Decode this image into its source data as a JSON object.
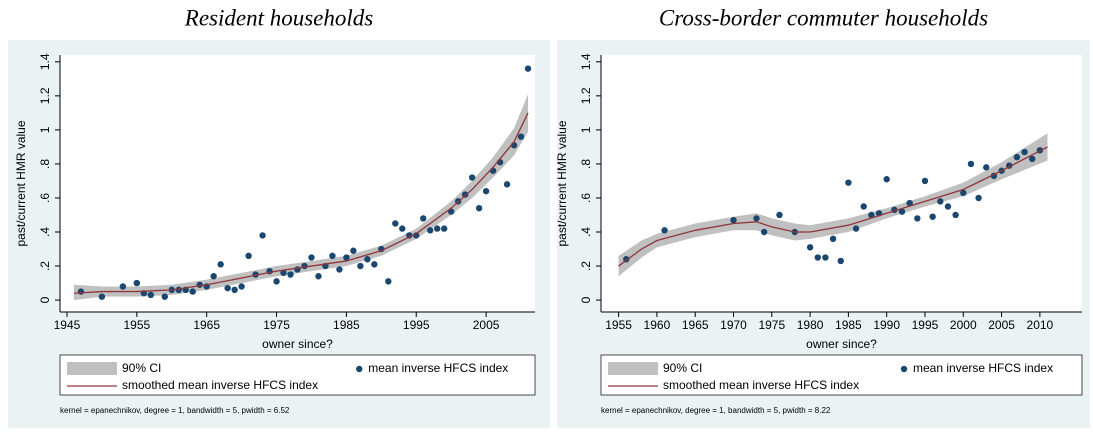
{
  "chart_data": [
    {
      "type": "scatter",
      "title": "Resident households",
      "xlabel": "owner since?",
      "ylabel": "past/current HMR value",
      "xlim": [
        1944,
        2012
      ],
      "ylim": [
        -0.07,
        1.44
      ],
      "xticks": [
        1945,
        1955,
        1965,
        1975,
        1985,
        1995,
        2005
      ],
      "yticks": [
        0,
        {
          "value": 0.2,
          "label": ".2"
        },
        {
          "value": 0.4,
          "label": ".4"
        },
        {
          "value": 0.6,
          "label": ".6"
        },
        {
          "value": 0.8,
          "label": ".8"
        },
        1,
        1.2,
        1.4
      ],
      "series": [
        {
          "name": "90% CI",
          "color": "#c0c0c0",
          "x": [
            1946,
            1950,
            1955,
            1960,
            1965,
            1970,
            1975,
            1980,
            1985,
            1990,
            1995,
            2000,
            2003,
            2006,
            2009,
            2011
          ],
          "lower": [
            0.0,
            0.02,
            0.02,
            0.03,
            0.06,
            0.1,
            0.14,
            0.17,
            0.2,
            0.26,
            0.36,
            0.5,
            0.6,
            0.72,
            0.85,
            0.99
          ],
          "upper": [
            0.09,
            0.08,
            0.08,
            0.09,
            0.12,
            0.16,
            0.2,
            0.23,
            0.26,
            0.32,
            0.42,
            0.58,
            0.7,
            0.84,
            1.01,
            1.21
          ]
        },
        {
          "name": "mean inverse HFCS index",
          "color": "#1a476f",
          "x": [
            1947,
            1950,
            1953,
            1955,
            1956,
            1957,
            1959,
            1960,
            1961,
            1962,
            1963,
            1964,
            1965,
            1966,
            1967,
            1968,
            1969,
            1970,
            1971,
            1972,
            1973,
            1974,
            1975,
            1976,
            1977,
            1978,
            1979,
            1980,
            1981,
            1982,
            1983,
            1984,
            1985,
            1986,
            1987,
            1988,
            1989,
            1990,
            1991,
            1992,
            1993,
            1994,
            1995,
            1996,
            1997,
            1998,
            1999,
            2000,
            2001,
            2002,
            2003,
            2004,
            2005,
            2006,
            2007,
            2008,
            2009,
            2010,
            2011
          ],
          "values": [
            0.05,
            0.02,
            0.08,
            0.1,
            0.04,
            0.03,
            0.02,
            0.06,
            0.06,
            0.06,
            0.05,
            0.09,
            0.08,
            0.14,
            0.21,
            0.07,
            0.06,
            0.08,
            0.26,
            0.15,
            0.38,
            0.17,
            0.11,
            0.16,
            0.15,
            0.18,
            0.2,
            0.25,
            0.14,
            0.2,
            0.26,
            0.18,
            0.25,
            0.29,
            0.2,
            0.24,
            0.21,
            0.3,
            0.11,
            0.45,
            0.42,
            0.38,
            0.38,
            0.48,
            0.41,
            0.42,
            0.42,
            0.52,
            0.58,
            0.62,
            0.72,
            0.54,
            0.64,
            0.76,
            0.81,
            0.68,
            0.91,
            0.96,
            1.36
          ]
        },
        {
          "name": "smoothed mean inverse HFCS index",
          "color": "#90353b",
          "x": [
            1946,
            1950,
            1955,
            1960,
            1965,
            1970,
            1975,
            1980,
            1985,
            1990,
            1995,
            2000,
            2003,
            2006,
            2009,
            2011
          ],
          "values": [
            0.04,
            0.05,
            0.05,
            0.06,
            0.09,
            0.13,
            0.17,
            0.2,
            0.23,
            0.29,
            0.39,
            0.54,
            0.65,
            0.78,
            0.93,
            1.1
          ]
        }
      ],
      "note": "kernel = epanechnikov, degree = 1, bandwidth = 5, pwidth = 6.52"
    },
    {
      "type": "scatter",
      "title": "Cross-border commuter households",
      "xlabel": "owner since?",
      "ylabel": "past/current HMR value",
      "xlim": [
        1952.7,
        2015.5
      ],
      "ylim": [
        -0.07,
        1.44
      ],
      "xticks": [
        1955,
        1960,
        1965,
        1970,
        1975,
        1980,
        1985,
        1990,
        1995,
        2000,
        2005,
        2010
      ],
      "yticks": [
        0,
        {
          "value": 0.2,
          "label": ".2"
        },
        {
          "value": 0.4,
          "label": ".4"
        },
        {
          "value": 0.6,
          "label": ".6"
        },
        {
          "value": 0.8,
          "label": ".8"
        },
        1,
        1.2,
        1.4
      ],
      "series": [
        {
          "name": "90% CI",
          "color": "#c0c0c0",
          "x": [
            1955,
            1958,
            1960,
            1965,
            1970,
            1973,
            1975,
            1978,
            1980,
            1985,
            1990,
            1995,
            2000,
            2005,
            2011
          ],
          "lower": [
            0.14,
            0.25,
            0.31,
            0.37,
            0.41,
            0.41,
            0.38,
            0.35,
            0.36,
            0.4,
            0.48,
            0.55,
            0.61,
            0.71,
            0.82
          ],
          "upper": [
            0.26,
            0.35,
            0.39,
            0.45,
            0.49,
            0.51,
            0.48,
            0.45,
            0.44,
            0.48,
            0.54,
            0.61,
            0.69,
            0.81,
            0.98
          ]
        },
        {
          "name": "mean inverse HFCS index",
          "color": "#1a476f",
          "x": [
            1956,
            1961,
            1970,
            1973,
            1974,
            1976,
            1978,
            1980,
            1981,
            1982,
            1983,
            1984,
            1985,
            1986,
            1987,
            1988,
            1989,
            1990,
            1991,
            1992,
            1993,
            1994,
            1995,
            1996,
            1997,
            1998,
            1999,
            2000,
            2001,
            2002,
            2003,
            2004,
            2005,
            2006,
            2007,
            2008,
            2009,
            2010
          ],
          "values": [
            0.24,
            0.41,
            0.47,
            0.48,
            0.4,
            0.5,
            0.4,
            0.31,
            0.25,
            0.25,
            0.36,
            0.23,
            0.69,
            0.42,
            0.55,
            0.5,
            0.51,
            0.71,
            0.53,
            0.52,
            0.57,
            0.48,
            0.7,
            0.49,
            0.58,
            0.55,
            0.5,
            0.63,
            0.8,
            0.6,
            0.78,
            0.73,
            0.76,
            0.79,
            0.84,
            0.87,
            0.83,
            0.88
          ]
        },
        {
          "name": "smoothed mean inverse HFCS index",
          "color": "#90353b",
          "x": [
            1955,
            1958,
            1960,
            1965,
            1970,
            1973,
            1975,
            1978,
            1980,
            1985,
            1990,
            1995,
            2000,
            2005,
            2011
          ],
          "values": [
            0.2,
            0.3,
            0.35,
            0.41,
            0.45,
            0.46,
            0.43,
            0.4,
            0.4,
            0.44,
            0.51,
            0.58,
            0.65,
            0.76,
            0.9
          ]
        }
      ],
      "note": "kernel = epanechnikov, degree = 1, bandwidth = 5, pwidth = 8.22"
    }
  ]
}
